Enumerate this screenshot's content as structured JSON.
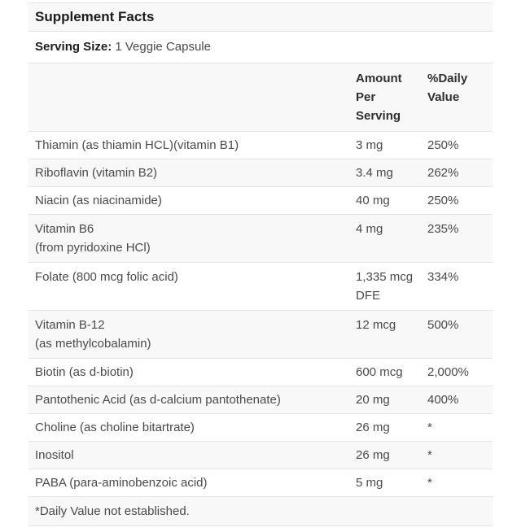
{
  "panel": {
    "title": "Supplement Facts",
    "serving": {
      "label": "Serving Size:",
      "value": "1 Veggie Capsule"
    },
    "header": {
      "amount_lines": [
        "Amount",
        "Per",
        "Serving"
      ],
      "daily_lines": [
        "%Daily",
        "Value"
      ]
    },
    "rows": [
      {
        "name": "Thiamin (as thiamin HCL)(vitamin B1)",
        "amount": "3 mg",
        "daily": "250%"
      },
      {
        "name": "Riboflavin (vitamin B2)",
        "amount": "3.4 mg",
        "daily": "262%"
      },
      {
        "name": "Niacin (as niacinamide)",
        "amount": "40 mg",
        "daily": "250%"
      },
      {
        "name": "Vitamin B6",
        "name2": "(from pyridoxine HCl)",
        "amount": "4 mg",
        "daily": "235%"
      },
      {
        "name": "Folate (800 mcg folic acid)",
        "amount": "1,335 mcg",
        "amount2": "DFE",
        "daily": "334%"
      },
      {
        "name": "Vitamin B-12",
        "name2": "(as methylcobalamin)",
        "amount": "12 mcg",
        "daily": "500%"
      },
      {
        "name": "Biotin (as d-biotin)",
        "amount": "600 mcg",
        "daily": "2,000%"
      },
      {
        "name": "Pantothenic Acid (as d-calcium pantothenate)",
        "amount": "20 mg",
        "daily": "400%"
      },
      {
        "name": "Choline (as choline bitartrate)",
        "amount": "26 mg",
        "daily": "*"
      },
      {
        "name": "Inositol",
        "amount": "26 mg",
        "daily": "*"
      },
      {
        "name": "PABA (para-aminobenzoic acid)",
        "amount": "5 mg",
        "daily": "*"
      }
    ],
    "footnote": "*Daily Value not established.",
    "colors": {
      "stripe": "#f8f8f8",
      "border": "#e3e3e3",
      "heading_text": "#1d1d1d",
      "body_text": "#4a4a4a"
    }
  }
}
